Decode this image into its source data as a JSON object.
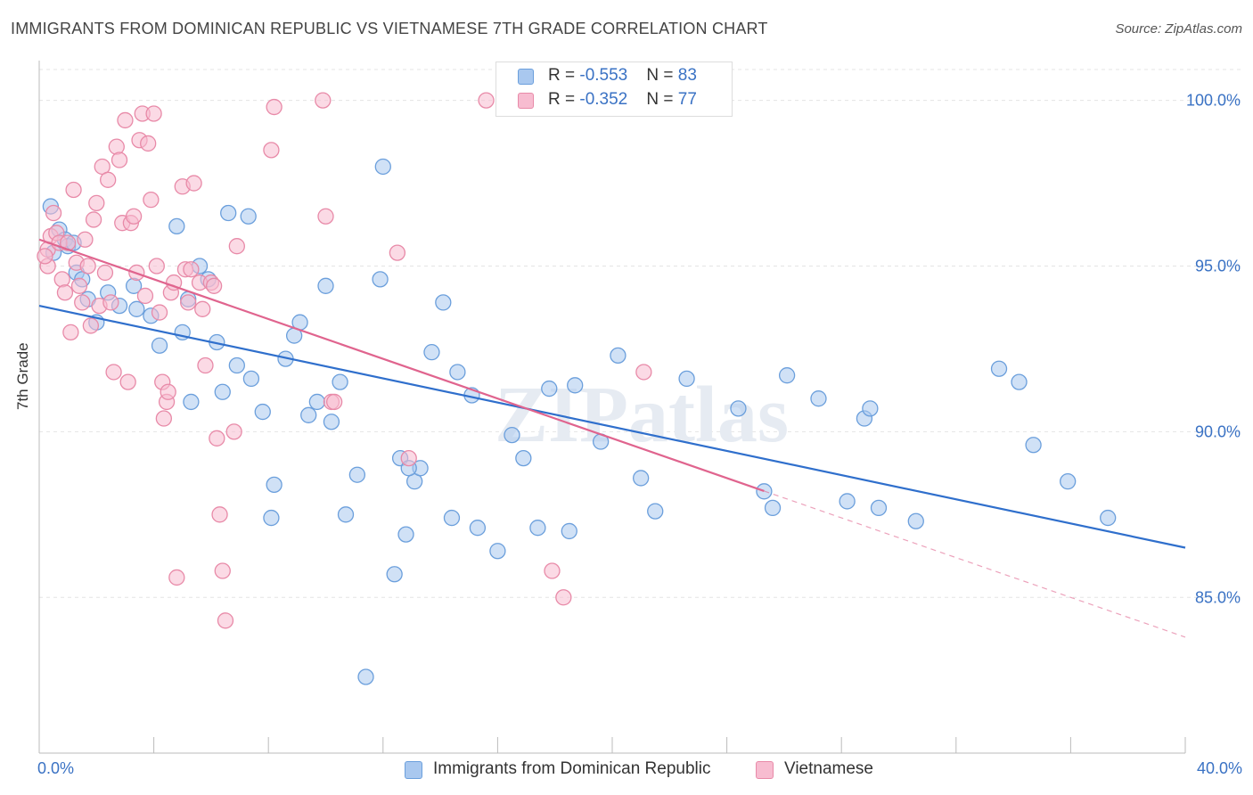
{
  "title": "IMMIGRANTS FROM DOMINICAN REPUBLIC VS VIETNAMESE 7TH GRADE CORRELATION CHART",
  "source": "Source: ZipAtlas.com",
  "watermark": "ZIPatlas",
  "stats": {
    "rows": [
      {
        "r_label": "R = ",
        "r_value": "-0.553",
        "n_label": "N = ",
        "n_value": "83",
        "color": "#a9c8ef",
        "border": "#6b9fdc"
      },
      {
        "r_label": "R = ",
        "r_value": "-0.352",
        "n_label": "N = ",
        "n_value": "77",
        "color": "#f7bcd0",
        "border": "#e88aa8"
      }
    ]
  },
  "chart_data": {
    "type": "scatter",
    "xlabel": "",
    "ylabel": "7th Grade",
    "xlim": [
      0,
      40
    ],
    "ylim": [
      80.3,
      101.2
    ],
    "x_tick_labels": [
      "0.0%",
      "40.0%"
    ],
    "y_ticks": [
      85,
      90,
      95,
      100
    ],
    "y_tick_labels": [
      "85.0%",
      "90.0%",
      "95.0%",
      "100.0%"
    ],
    "grid": true,
    "legend_position": "bottom-center",
    "series": [
      {
        "name": "Immigrants from Dominican Republic",
        "color": "#a9c8ef",
        "stroke": "#6b9fdc",
        "line_color": "#2f6fcc",
        "trend": {
          "x": [
            0,
            40
          ],
          "y": [
            93.8,
            86.5
          ]
        },
        "points": [
          [
            0.4,
            96.8
          ],
          [
            0.7,
            96.1
          ],
          [
            0.9,
            95.8
          ],
          [
            1.0,
            95.6
          ],
          [
            1.2,
            95.7
          ],
          [
            0.5,
            95.4
          ],
          [
            1.3,
            94.8
          ],
          [
            1.5,
            94.6
          ],
          [
            1.7,
            94.0
          ],
          [
            2.0,
            93.3
          ],
          [
            2.8,
            93.8
          ],
          [
            3.3,
            94.4
          ],
          [
            3.4,
            93.7
          ],
          [
            3.9,
            93.5
          ],
          [
            2.4,
            94.2
          ],
          [
            4.2,
            92.6
          ],
          [
            4.8,
            96.2
          ],
          [
            5.0,
            93.0
          ],
          [
            5.2,
            94.0
          ],
          [
            5.6,
            95.0
          ],
          [
            5.9,
            94.6
          ],
          [
            5.3,
            90.9
          ],
          [
            6.2,
            92.7
          ],
          [
            6.4,
            91.2
          ],
          [
            6.6,
            96.6
          ],
          [
            6.9,
            92.0
          ],
          [
            7.3,
            96.5
          ],
          [
            7.4,
            91.6
          ],
          [
            7.8,
            90.6
          ],
          [
            8.2,
            88.4
          ],
          [
            8.1,
            87.4
          ],
          [
            8.6,
            92.2
          ],
          [
            8.9,
            92.9
          ],
          [
            9.1,
            93.3
          ],
          [
            9.4,
            90.5
          ],
          [
            9.7,
            90.9
          ],
          [
            10.0,
            94.4
          ],
          [
            10.2,
            90.3
          ],
          [
            10.5,
            91.5
          ],
          [
            10.7,
            87.5
          ],
          [
            11.1,
            88.7
          ],
          [
            11.4,
            82.6
          ],
          [
            11.9,
            94.6
          ],
          [
            12.0,
            98.0
          ],
          [
            12.4,
            85.7
          ],
          [
            12.6,
            89.2
          ],
          [
            12.8,
            86.9
          ],
          [
            13.1,
            88.5
          ],
          [
            13.3,
            88.9
          ],
          [
            13.7,
            92.4
          ],
          [
            14.1,
            93.9
          ],
          [
            14.4,
            87.4
          ],
          [
            14.6,
            91.8
          ],
          [
            15.1,
            91.1
          ],
          [
            15.3,
            87.1
          ],
          [
            16.0,
            86.4
          ],
          [
            16.5,
            89.9
          ],
          [
            16.9,
            89.2
          ],
          [
            17.4,
            87.1
          ],
          [
            17.8,
            91.3
          ],
          [
            18.5,
            87.0
          ],
          [
            18.7,
            91.4
          ],
          [
            19.6,
            89.7
          ],
          [
            20.2,
            92.3
          ],
          [
            21.0,
            88.6
          ],
          [
            21.5,
            87.6
          ],
          [
            22.6,
            91.6
          ],
          [
            24.4,
            90.7
          ],
          [
            25.3,
            88.2
          ],
          [
            25.6,
            87.7
          ],
          [
            26.1,
            91.7
          ],
          [
            27.2,
            91.0
          ],
          [
            28.2,
            87.9
          ],
          [
            28.8,
            90.4
          ],
          [
            29.0,
            90.7
          ],
          [
            29.3,
            87.7
          ],
          [
            30.6,
            87.3
          ],
          [
            33.5,
            91.9
          ],
          [
            34.2,
            91.5
          ],
          [
            34.7,
            89.6
          ],
          [
            35.9,
            88.5
          ],
          [
            37.3,
            87.4
          ],
          [
            12.9,
            88.9
          ]
        ]
      },
      {
        "name": "Vietnamese",
        "color": "#f7bcd0",
        "stroke": "#e88aa8",
        "line_color": "#e0648e",
        "trend": {
          "x": [
            0,
            40
          ],
          "y": [
            95.8,
            83.8
          ]
        },
        "trend_solid_until": 25.3,
        "points": [
          [
            0.3,
            95.5
          ],
          [
            0.4,
            95.9
          ],
          [
            0.5,
            96.6
          ],
          [
            0.3,
            95.0
          ],
          [
            0.6,
            96.0
          ],
          [
            0.7,
            95.7
          ],
          [
            0.8,
            94.6
          ],
          [
            0.9,
            94.2
          ],
          [
            1.0,
            95.7
          ],
          [
            1.1,
            93.0
          ],
          [
            1.2,
            97.3
          ],
          [
            1.3,
            95.1
          ],
          [
            1.4,
            94.4
          ],
          [
            1.6,
            95.8
          ],
          [
            1.7,
            95.0
          ],
          [
            1.8,
            93.2
          ],
          [
            1.9,
            96.4
          ],
          [
            2.0,
            96.9
          ],
          [
            2.1,
            93.8
          ],
          [
            2.2,
            98.0
          ],
          [
            2.4,
            97.6
          ],
          [
            2.5,
            93.9
          ],
          [
            2.6,
            91.8
          ],
          [
            2.7,
            98.6
          ],
          [
            2.8,
            98.2
          ],
          [
            2.9,
            96.3
          ],
          [
            3.0,
            99.4
          ],
          [
            3.1,
            91.5
          ],
          [
            3.2,
            96.3
          ],
          [
            3.3,
            96.5
          ],
          [
            3.4,
            94.8
          ],
          [
            3.5,
            98.8
          ],
          [
            3.6,
            99.6
          ],
          [
            3.7,
            94.1
          ],
          [
            3.8,
            98.7
          ],
          [
            3.9,
            97.0
          ],
          [
            4.0,
            99.6
          ],
          [
            4.1,
            95.0
          ],
          [
            4.2,
            93.6
          ],
          [
            4.3,
            91.5
          ],
          [
            4.35,
            90.4
          ],
          [
            4.45,
            90.9
          ],
          [
            4.5,
            91.2
          ],
          [
            4.6,
            94.2
          ],
          [
            4.8,
            85.6
          ],
          [
            5.0,
            97.4
          ],
          [
            5.1,
            94.9
          ],
          [
            5.2,
            93.9
          ],
          [
            5.3,
            94.9
          ],
          [
            5.4,
            97.5
          ],
          [
            5.6,
            94.5
          ],
          [
            5.7,
            93.7
          ],
          [
            5.8,
            92.0
          ],
          [
            6.0,
            94.5
          ],
          [
            6.2,
            89.8
          ],
          [
            6.3,
            87.5
          ],
          [
            6.4,
            85.8
          ],
          [
            6.5,
            84.3
          ],
          [
            6.8,
            90.0
          ],
          [
            6.9,
            95.6
          ],
          [
            8.1,
            98.5
          ],
          [
            8.2,
            99.8
          ],
          [
            9.9,
            100.0
          ],
          [
            10.0,
            96.5
          ],
          [
            10.2,
            90.9
          ],
          [
            12.5,
            95.4
          ],
          [
            12.9,
            89.2
          ],
          [
            15.6,
            100.0
          ],
          [
            17.9,
            85.8
          ],
          [
            18.3,
            85.0
          ],
          [
            21.1,
            91.8
          ],
          [
            10.3,
            90.9
          ],
          [
            1.5,
            93.9
          ],
          [
            2.3,
            94.8
          ],
          [
            0.2,
            95.3
          ],
          [
            4.7,
            94.5
          ],
          [
            6.1,
            94.4
          ]
        ]
      }
    ]
  },
  "legend": {
    "items": [
      {
        "label": "Immigrants from Dominican Republic",
        "color": "#a9c8ef",
        "border": "#6b9fdc"
      },
      {
        "label": "Vietnamese",
        "color": "#f7bcd0",
        "border": "#e88aa8"
      }
    ]
  }
}
